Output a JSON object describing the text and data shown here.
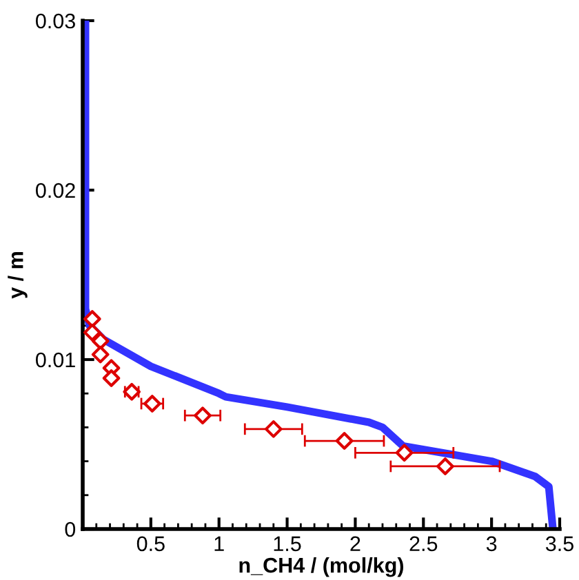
{
  "chart_data": {
    "type": "line",
    "xlabel": "n_CH4 / (mol/kg)",
    "ylabel": "y / m",
    "xlim": [
      0,
      3.5
    ],
    "ylim": [
      0,
      0.03
    ],
    "xticks": [
      {
        "value": 0.1,
        "label": null
      },
      {
        "value": 0.2,
        "label": null
      },
      {
        "value": 0.3,
        "label": null
      },
      {
        "value": 0.4,
        "label": null
      },
      0.5,
      {
        "value": 0.6,
        "label": null
      },
      {
        "value": 0.7,
        "label": null
      },
      {
        "value": 0.8,
        "label": null
      },
      {
        "value": 0.9,
        "label": null
      },
      1,
      {
        "value": 1.1,
        "label": null
      },
      {
        "value": 1.2,
        "label": null
      },
      {
        "value": 1.3,
        "label": null
      },
      {
        "value": 1.4,
        "label": null
      },
      1.5,
      {
        "value": 1.6,
        "label": null
      },
      {
        "value": 1.7,
        "label": null
      },
      {
        "value": 1.8,
        "label": null
      },
      {
        "value": 1.9,
        "label": null
      },
      2,
      {
        "value": 2.1,
        "label": null
      },
      {
        "value": 2.2,
        "label": null
      },
      {
        "value": 2.3,
        "label": null
      },
      {
        "value": 2.4,
        "label": null
      },
      2.5,
      {
        "value": 2.6,
        "label": null
      },
      {
        "value": 2.7,
        "label": null
      },
      {
        "value": 2.8,
        "label": null
      },
      {
        "value": 2.9,
        "label": null
      },
      3,
      {
        "value": 3.1,
        "label": null
      },
      {
        "value": 3.2,
        "label": null
      },
      {
        "value": 3.3,
        "label": null
      },
      {
        "value": 3.4,
        "label": null
      },
      3.5
    ],
    "yticks": [
      0,
      {
        "value": 0.002,
        "label": null
      },
      {
        "value": 0.004,
        "label": null
      },
      {
        "value": 0.006,
        "label": null
      },
      {
        "value": 0.008,
        "label": null
      },
      0.01,
      {
        "value": 0.012,
        "label": null
      },
      {
        "value": 0.014,
        "label": null
      },
      {
        "value": 0.016,
        "label": null
      },
      {
        "value": 0.018,
        "label": null
      },
      0.02,
      {
        "value": 0.022,
        "label": null
      },
      {
        "value": 0.024,
        "label": null
      },
      {
        "value": 0.026,
        "label": null
      },
      {
        "value": 0.028,
        "label": null
      },
      0.03
    ],
    "series": [
      {
        "color": "#3333ff",
        "line_style": "solid",
        "marker": "none",
        "x": [
          0.02,
          0.02,
          0.05,
          0.15,
          0.5,
          1.0,
          1.05,
          1.5,
          2.1,
          2.2,
          2.35,
          3.0,
          3.32,
          3.42,
          3.45
        ],
        "values": [
          0.03,
          0.013,
          0.012,
          0.0112,
          0.0096,
          0.008,
          0.0078,
          0.0072,
          0.0063,
          0.006,
          0.0049,
          0.004,
          0.0031,
          0.0025,
          0.0
        ]
      },
      {
        "type": "scatter",
        "color": "#dd0000",
        "marker": "diamond",
        "x": [
          0.07,
          0.07,
          0.13,
          0.13,
          0.21,
          0.21,
          0.36,
          0.51,
          0.88,
          1.4,
          1.92,
          2.36,
          2.66
        ],
        "values": [
          0.0124,
          0.0116,
          0.0111,
          0.0103,
          0.0095,
          0.0089,
          0.0081,
          0.0074,
          0.0067,
          0.0059,
          0.0052,
          0.0045,
          0.0037
        ],
        "xerrors": [
          null,
          null,
          null,
          null,
          null,
          null,
          0.05,
          0.08,
          0.13,
          0.21,
          0.29,
          0.36,
          0.4
        ]
      }
    ]
  }
}
